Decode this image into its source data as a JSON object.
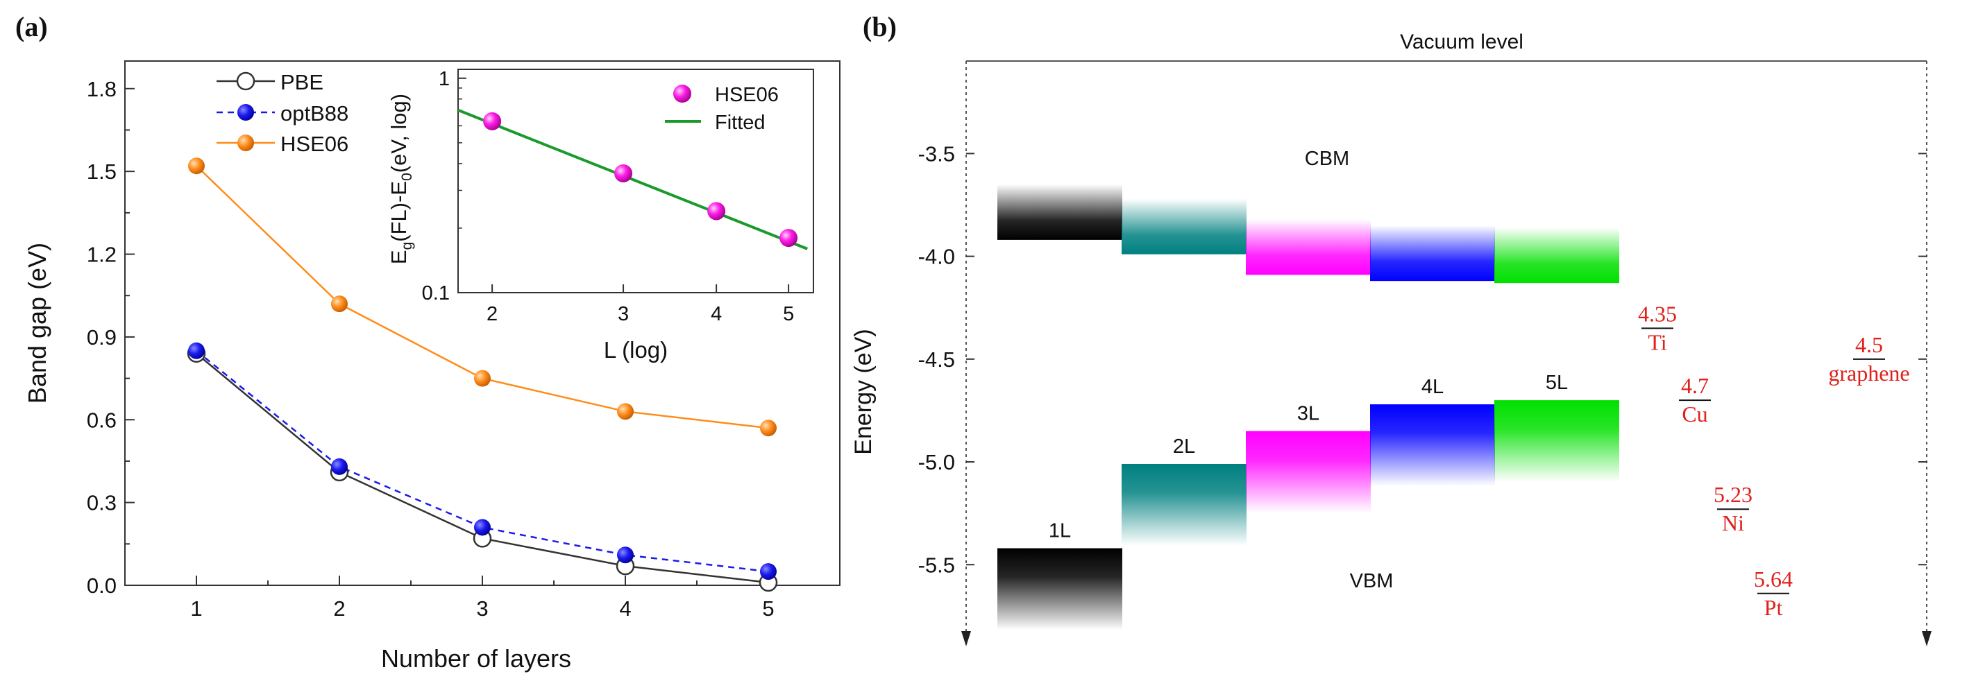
{
  "panels": {
    "a_label": "(a)",
    "b_label": "(b)"
  },
  "chart_data": [
    {
      "type": "line",
      "title": "",
      "xlabel": "Number of layers",
      "ylabel": "Band gap (eV)",
      "x": [
        1,
        2,
        3,
        4,
        5
      ],
      "xlim": [
        0.5,
        5.5
      ],
      "ylim": [
        0,
        1.9
      ],
      "xticks": [
        1,
        2,
        3,
        4,
        5
      ],
      "yticks": [
        0.0,
        0.3,
        0.6,
        0.9,
        1.2,
        1.5,
        1.8
      ],
      "ytick_labels": [
        "0.0",
        "0.3",
        "0.6",
        "0.9",
        "1.2",
        "1.5",
        "1.8"
      ],
      "legend_position": "top-left",
      "series": [
        {
          "name": "PBE",
          "values": [
            0.84,
            0.41,
            0.17,
            0.07,
            0.01
          ],
          "color": "#333333",
          "marker": "open-circle",
          "line": "solid"
        },
        {
          "name": "optB88",
          "values": [
            0.85,
            0.43,
            0.21,
            0.11,
            0.05
          ],
          "color": "#1a1aee",
          "marker": "filled-circle",
          "line": "dashed"
        },
        {
          "name": "HSE06",
          "values": [
            1.52,
            1.02,
            0.75,
            0.63,
            0.57
          ],
          "color": "#ff8c1a",
          "marker": "filled-circle",
          "line": "solid"
        }
      ]
    },
    {
      "type": "scatter",
      "title": "",
      "inset_of": "panel-a",
      "xlabel": "L (log)",
      "ylabel_parts": [
        "E",
        "g",
        "(FL)-E",
        "0",
        "(eV, log)"
      ],
      "xscale": "log",
      "yscale": "log",
      "xlim": [
        1.8,
        5.4
      ],
      "ylim": [
        0.1,
        1.1
      ],
      "xticks": [
        2,
        3,
        4,
        5
      ],
      "yticks": [
        0.1,
        1
      ],
      "ytick_labels": [
        "0.1",
        "1"
      ],
      "legend_position": "top-right",
      "series": [
        {
          "name": "HSE06",
          "x": [
            2,
            3,
            4,
            5
          ],
          "values": [
            0.63,
            0.36,
            0.24,
            0.18
          ],
          "color": "#ff1ee6",
          "marker": "sphere"
        },
        {
          "name": "Fitted",
          "x": [
            1.8,
            5.3
          ],
          "values": [
            0.71,
            0.16
          ],
          "color": "#1a9a2a",
          "marker": "none",
          "line": "solid"
        }
      ]
    },
    {
      "type": "bar",
      "title": "",
      "ylabel": "Energy (eV)",
      "ylim": [
        -5.85,
        -3.05
      ],
      "yticks": [
        -5.5,
        -5.0,
        -4.5,
        -4.0,
        -3.5
      ],
      "ytick_labels": [
        "-5.5",
        "-5.0",
        "-4.5",
        "-4.0",
        "-3.5"
      ],
      "annotations": {
        "vacuum": "Vacuum level",
        "cbm": "CBM",
        "vbm": "VBM"
      },
      "categories": [
        "1L",
        "2L",
        "3L",
        "4L",
        "5L"
      ],
      "cbm": [
        -3.92,
        -3.99,
        -4.09,
        -4.12,
        -4.13
      ],
      "vbm": [
        -5.42,
        -5.01,
        -4.85,
        -4.72,
        -4.7
      ],
      "colors": [
        "#000000",
        "#008080",
        "#ff00ff",
        "#0000ff",
        "#00e000"
      ],
      "work_functions": [
        {
          "metal": "Ti",
          "value": 4.35,
          "label": "4.35"
        },
        {
          "metal": "Cu",
          "value": 4.7,
          "label": "4.7"
        },
        {
          "metal": "Ni",
          "value": 5.23,
          "label": "5.23"
        },
        {
          "metal": "Pt",
          "value": 5.64,
          "label": "5.64"
        },
        {
          "metal": "graphene",
          "value": 4.5,
          "label": "4.5"
        }
      ]
    }
  ]
}
